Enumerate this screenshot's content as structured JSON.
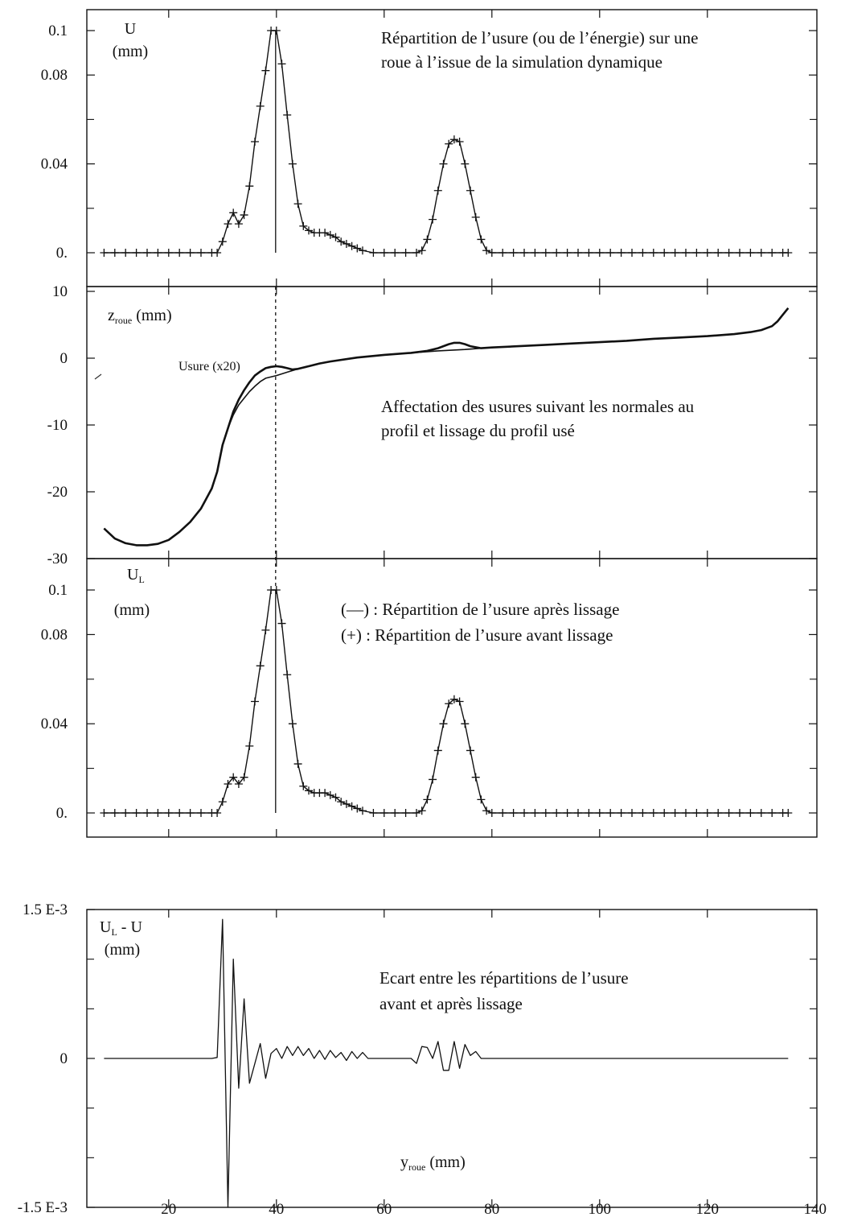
{
  "chart_data": [
    {
      "id": "p1",
      "type": "line",
      "title": "Répartition de l’usure (ou de l’énergie) sur une roue à l’issue de la simulation dynamique",
      "title_lines": [
        "Répartition de l’usure (ou de l’énergie) sur une",
        "roue à l’issue de la simulation dynamique"
      ],
      "ylabel_lines": [
        "U",
        "(mm)"
      ],
      "xlim": [
        0,
        140
      ],
      "ylim": [
        0,
        0.105
      ],
      "y_ticks": [
        {
          "v": 0,
          "label": "0."
        },
        {
          "v": 0.04,
          "label": "0.04"
        },
        {
          "v": 0.08,
          "label": "0.08"
        },
        {
          "v": 0.1,
          "label": "0.1"
        }
      ],
      "x_minor_ticks": [
        20,
        40,
        60,
        80,
        100,
        120
      ],
      "y_minor_ticks": [
        0.02,
        0.06
      ],
      "marker": "plus",
      "vline_x": 40,
      "series": [
        {
          "x": [
            8,
            10,
            12,
            14,
            16,
            18,
            20,
            22,
            24,
            26,
            28,
            29,
            30,
            31,
            32,
            33,
            34,
            35,
            36,
            37,
            38,
            39,
            40,
            41,
            42,
            43,
            44,
            45,
            46,
            47,
            48,
            49,
            50,
            51,
            52,
            53,
            54,
            55,
            56,
            58,
            60,
            62,
            64,
            66,
            67,
            68,
            69,
            70,
            71,
            72,
            73,
            74,
            75,
            76,
            77,
            78,
            79,
            80,
            82,
            84,
            86,
            88,
            90,
            92,
            94,
            96,
            98,
            100,
            102,
            104,
            106,
            108,
            110,
            112,
            114,
            116,
            118,
            120,
            122,
            124,
            126,
            128,
            130,
            132,
            134,
            135
          ],
          "y": [
            0,
            0,
            0,
            0,
            0,
            0,
            0,
            0,
            0,
            0,
            0,
            0,
            0.005,
            0.013,
            0.018,
            0.013,
            0.017,
            0.03,
            0.05,
            0.066,
            0.082,
            0.1,
            0.1,
            0.085,
            0.062,
            0.04,
            0.022,
            0.012,
            0.01,
            0.009,
            0.009,
            0.009,
            0.008,
            0.007,
            0.005,
            0.004,
            0.003,
            0.002,
            0.001,
            0,
            0,
            0,
            0,
            0,
            0.001,
            0.006,
            0.015,
            0.028,
            0.04,
            0.049,
            0.051,
            0.05,
            0.04,
            0.028,
            0.016,
            0.006,
            0.001,
            0,
            0,
            0,
            0,
            0,
            0,
            0,
            0,
            0,
            0,
            0,
            0,
            0,
            0,
            0,
            0,
            0,
            0,
            0,
            0,
            0,
            0,
            0,
            0,
            0,
            0,
            0,
            0,
            0
          ]
        }
      ]
    },
    {
      "id": "p2",
      "type": "line",
      "title": "Affectation des usures suivant les normales au profil et lissage du profil usé",
      "title_lines": [
        "Affectation des usures suivant les normales au",
        "profil et lissage du profil usé"
      ],
      "ylabel": "z",
      "ylabel_sub": "roue",
      "ylabel_unit": " (mm)",
      "curve_label": "Usure (x20)",
      "xlim": [
        0,
        140
      ],
      "ylim": [
        -30,
        10
      ],
      "y_ticks": [
        {
          "v": -30,
          "label": "-30"
        },
        {
          "v": -20,
          "label": "-20"
        },
        {
          "v": -10,
          "label": "-10"
        },
        {
          "v": 0,
          "label": "0"
        },
        {
          "v": 10,
          "label": "10"
        }
      ],
      "x_minor_ticks": [
        20,
        40,
        60,
        80,
        100,
        120
      ],
      "y_minor_ticks": [],
      "series": [
        {
          "x": [
            8,
            10,
            12,
            14,
            16,
            18,
            20,
            22,
            24,
            26,
            28,
            29,
            30,
            31,
            32,
            33,
            34,
            35,
            36,
            37,
            38,
            40,
            42,
            44,
            46,
            48,
            50,
            55,
            60,
            65,
            70,
            75,
            80,
            85,
            90,
            95,
            100,
            105,
            110,
            115,
            120,
            125,
            128,
            130,
            132,
            133,
            134,
            135
          ],
          "y": [
            -25.5,
            -27,
            -27.7,
            -28,
            -28,
            -27.8,
            -27.2,
            -26,
            -24.5,
            -22.5,
            -19.5,
            -17,
            -13,
            -10.5,
            -8.5,
            -7,
            -6,
            -5,
            -4.2,
            -3.5,
            -3,
            -2.6,
            -2.1,
            -1.6,
            -1.2,
            -0.8,
            -0.5,
            0.1,
            0.5,
            0.8,
            1.1,
            1.3,
            1.6,
            1.8,
            2,
            2.2,
            2.4,
            2.6,
            2.9,
            3.1,
            3.3,
            3.6,
            3.9,
            4.2,
            4.8,
            5.5,
            6.5,
            7.5
          ]
        },
        {
          "x": [
            8,
            10,
            12,
            14,
            16,
            18,
            20,
            22,
            24,
            26,
            28,
            29,
            30,
            31,
            32,
            33,
            34,
            35,
            36,
            37,
            38,
            39,
            40,
            41,
            42,
            43,
            44,
            45,
            46,
            48,
            50,
            55,
            60,
            65,
            68,
            70,
            72,
            73,
            74,
            75,
            76,
            78,
            80,
            85,
            90,
            95,
            100,
            105,
            110,
            115,
            120,
            125,
            128,
            130,
            132,
            133,
            134,
            135
          ],
          "y": [
            -25.5,
            -27,
            -27.7,
            -28,
            -28,
            -27.8,
            -27.2,
            -26,
            -24.5,
            -22.5,
            -19.5,
            -17,
            -13,
            -10.5,
            -8,
            -6.2,
            -4.8,
            -3.6,
            -2.6,
            -2,
            -1.5,
            -1.3,
            -1.2,
            -1.3,
            -1.5,
            -1.7,
            -1.6,
            -1.4,
            -1.2,
            -0.8,
            -0.5,
            0.1,
            0.5,
            0.8,
            1.1,
            1.5,
            2.1,
            2.3,
            2.3,
            2.1,
            1.8,
            1.5,
            1.6,
            1.8,
            2,
            2.2,
            2.4,
            2.6,
            2.9,
            3.1,
            3.3,
            3.6,
            3.9,
            4.2,
            4.8,
            5.5,
            6.5,
            7.5
          ]
        }
      ]
    },
    {
      "id": "p3",
      "type": "line",
      "ylabel": "U",
      "ylabel_sub": "L",
      "ylabel_unit": "(mm)",
      "legend_lines": [
        "(—) : Répartition de l’usure après lissage",
        "(+) : Répartition de l’usure avant lissage"
      ],
      "xlim": [
        0,
        140
      ],
      "ylim": [
        0,
        0.105
      ],
      "y_ticks": [
        {
          "v": 0,
          "label": "0."
        },
        {
          "v": 0.04,
          "label": "0.04"
        },
        {
          "v": 0.08,
          "label": "0.08"
        },
        {
          "v": 0.1,
          "label": "0.1"
        }
      ],
      "x_minor_ticks": [
        20,
        40,
        60,
        80,
        100,
        120
      ],
      "y_minor_ticks": [
        0.02,
        0.06
      ],
      "marker": "plus",
      "vline_x": 40,
      "series": [
        {
          "x": [
            8,
            10,
            12,
            14,
            16,
            18,
            20,
            22,
            24,
            26,
            28,
            29,
            30,
            31,
            32,
            33,
            34,
            35,
            36,
            37,
            38,
            39,
            40,
            41,
            42,
            43,
            44,
            45,
            46,
            47,
            48,
            49,
            50,
            51,
            52,
            53,
            54,
            55,
            56,
            58,
            60,
            62,
            64,
            66,
            67,
            68,
            69,
            70,
            71,
            72,
            73,
            74,
            75,
            76,
            77,
            78,
            79,
            80,
            82,
            84,
            86,
            88,
            90,
            92,
            94,
            96,
            98,
            100,
            102,
            104,
            106,
            108,
            110,
            112,
            114,
            116,
            118,
            120,
            122,
            124,
            126,
            128,
            130,
            132,
            134,
            135
          ],
          "y": [
            0,
            0,
            0,
            0,
            0,
            0,
            0,
            0,
            0,
            0,
            0,
            0,
            0.005,
            0.013,
            0.016,
            0.013,
            0.016,
            0.03,
            0.05,
            0.066,
            0.082,
            0.1,
            0.1,
            0.085,
            0.062,
            0.04,
            0.022,
            0.012,
            0.01,
            0.009,
            0.009,
            0.009,
            0.008,
            0.007,
            0.005,
            0.004,
            0.003,
            0.002,
            0.001,
            0,
            0,
            0,
            0,
            0,
            0.001,
            0.006,
            0.015,
            0.028,
            0.04,
            0.049,
            0.051,
            0.05,
            0.04,
            0.028,
            0.016,
            0.006,
            0.001,
            0,
            0,
            0,
            0,
            0,
            0,
            0,
            0,
            0,
            0,
            0,
            0,
            0,
            0,
            0,
            0,
            0,
            0,
            0,
            0,
            0,
            0,
            0,
            0,
            0,
            0,
            0,
            0,
            0
          ]
        }
      ]
    },
    {
      "id": "p4",
      "type": "line",
      "title": "Ecart entre les répartitions de l’usure avant et après lissage",
      "title_lines": [
        "Ecart entre les répartitions de l’usure",
        "avant et après lissage"
      ],
      "ylabel": "U",
      "ylabel_sub": "L",
      "ylabel_suffix": " - U",
      "ylabel_unit": "(mm)",
      "xlabel": "y",
      "xlabel_sub": "roue",
      "xlabel_unit": " (mm)",
      "xlim": [
        0,
        140
      ],
      "ylim": [
        -0.0015,
        0.0015
      ],
      "y_ticks": [
        {
          "v": -0.0015,
          "label": "-1.5 E-3"
        },
        {
          "v": 0,
          "label": "0"
        },
        {
          "v": 0.0015,
          "label": "1.5 E-3"
        }
      ],
      "y_minor_ticks": [
        -0.001,
        -0.0005,
        0.0005,
        0.001
      ],
      "x_ticks": [
        {
          "v": 20,
          "label": "20"
        },
        {
          "v": 40,
          "label": "40"
        },
        {
          "v": 60,
          "label": "60"
        },
        {
          "v": 80,
          "label": "80"
        },
        {
          "v": 100,
          "label": "100"
        },
        {
          "v": 120,
          "label": "120"
        },
        {
          "v": 140,
          "label": "140"
        }
      ],
      "series": [
        {
          "x": [
            8,
            20,
            28,
            29,
            30,
            31,
            32,
            33,
            34,
            35,
            36,
            37,
            38,
            39,
            40,
            41,
            42,
            43,
            44,
            45,
            46,
            47,
            48,
            49,
            50,
            51,
            52,
            53,
            54,
            55,
            56,
            57,
            58,
            59,
            60,
            61,
            62,
            63,
            64,
            65,
            66,
            67,
            68,
            69,
            70,
            71,
            72,
            73,
            74,
            75,
            76,
            77,
            78,
            79,
            80,
            81,
            82,
            83,
            85,
            100,
            120,
            135
          ],
          "y": [
            0,
            0,
            0,
            1e-05,
            0.0014,
            -0.0015,
            0.001,
            -0.0003,
            0.0006,
            -0.00025,
            -5e-05,
            0.00015,
            -0.0002,
            5e-05,
            0.0001,
            0,
            0.00012,
            3e-05,
            0.00012,
            3e-05,
            0.0001,
            0,
            8e-05,
            -1e-05,
            8e-05,
            1e-05,
            6e-05,
            -2e-05,
            7e-05,
            0,
            6e-05,
            0,
            0,
            0,
            0,
            0,
            0,
            0,
            0,
            0,
            -5e-05,
            0.00012,
            0.00011,
            0,
            0.00017,
            -0.00012,
            -0.00012,
            0.00017,
            -0.0001,
            0.00014,
            3e-05,
            7e-05,
            0,
            0,
            0,
            0,
            0,
            0,
            0,
            0,
            0,
            0
          ]
        }
      ]
    }
  ]
}
